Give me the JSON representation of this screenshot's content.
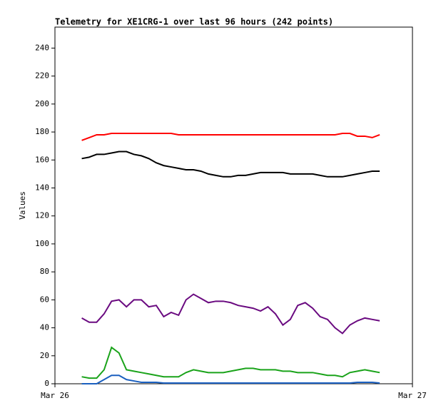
{
  "chart_data": {
    "type": "line",
    "title": "Telemetry for XE1CRG-1 over last 96 hours (242 points)",
    "y_label": "Values",
    "x": [
      1.8,
      2.3,
      2.8,
      3.3,
      3.8,
      4.3,
      4.8,
      5.3,
      5.8,
      6.3,
      6.8,
      7.3,
      7.8,
      8.3,
      8.8,
      9.3,
      9.8,
      10.3,
      10.8,
      11.3,
      11.8,
      12.3,
      12.8,
      13.3,
      13.8,
      14.3,
      14.8,
      15.3,
      15.8,
      16.3,
      16.8,
      17.3,
      17.8,
      18.3,
      18.8,
      19.3,
      19.8,
      20.3,
      20.8,
      21.3,
      21.8
    ],
    "series": [
      {
        "color": "#ff0000",
        "values": [
          174,
          176,
          178,
          178,
          179,
          179,
          179,
          179,
          179,
          179,
          179,
          179,
          179,
          178,
          178,
          178,
          178,
          178,
          178,
          178,
          178,
          178,
          178,
          178,
          178,
          178,
          178,
          178,
          178,
          178,
          178,
          178,
          178,
          178,
          178,
          179,
          179,
          177,
          177,
          176,
          178
        ]
      },
      {
        "color": "#000000",
        "values": [
          161,
          162,
          164,
          164,
          165,
          166,
          166,
          164,
          163,
          161,
          158,
          156,
          155,
          154,
          153,
          153,
          152,
          150,
          149,
          148,
          148,
          149,
          149,
          150,
          151,
          151,
          151,
          151,
          150,
          150,
          150,
          150,
          149,
          148,
          148,
          148,
          149,
          150,
          151,
          152,
          152
        ]
      },
      {
        "color": "#6a0a80",
        "values": [
          47,
          44,
          44,
          50,
          59,
          60,
          55,
          60,
          60,
          55,
          56,
          48,
          51,
          49,
          60,
          64,
          61,
          58,
          59,
          59,
          58,
          56,
          55,
          54,
          52,
          55,
          50,
          42,
          46,
          56,
          58,
          54,
          48,
          46,
          40,
          36,
          42,
          45,
          47,
          46,
          45
        ]
      },
      {
        "color": "#1aa31a",
        "values": [
          5,
          4,
          4,
          10,
          26,
          22,
          10,
          9,
          8,
          7,
          6,
          5,
          5,
          5,
          8,
          10,
          9,
          8,
          8,
          8,
          9,
          10,
          11,
          11,
          10,
          10,
          10,
          9,
          9,
          8,
          8,
          8,
          7,
          6,
          6,
          5,
          8,
          9,
          10,
          9,
          8
        ]
      },
      {
        "color": "#1a5fbf",
        "values": [
          0,
          0,
          0,
          3,
          6,
          6,
          3,
          2,
          1,
          1,
          1,
          0.5,
          0.5,
          0.5,
          0.5,
          0.5,
          0.5,
          0.5,
          0.5,
          0.5,
          0.5,
          0.5,
          0.5,
          0.5,
          0.5,
          0.5,
          0.5,
          0.5,
          0.5,
          0.5,
          0.5,
          0.5,
          0.5,
          0.5,
          0.5,
          0.5,
          0.5,
          1,
          1,
          1,
          0.5
        ]
      }
    ],
    "xlim": [
      0,
      24
    ],
    "xticks": [
      {
        "value": 0,
        "label": "Mar 26"
      },
      {
        "value": 24,
        "label": "Mar 27"
      }
    ],
    "ylim": [
      0,
      255
    ],
    "yticks": [
      0,
      20,
      40,
      60,
      80,
      100,
      120,
      140,
      160,
      180,
      200,
      220,
      240
    ]
  }
}
